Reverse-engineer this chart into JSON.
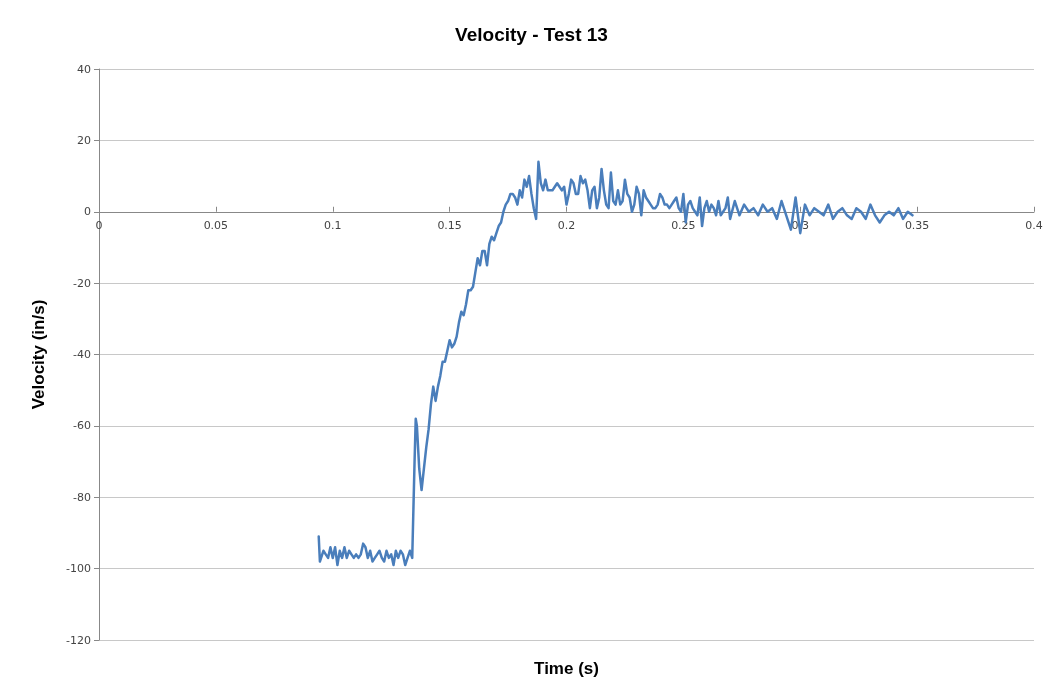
{
  "chart_data": {
    "type": "line",
    "title": "Velocity - Test 13",
    "xlabel": "Time (s)",
    "ylabel": "Velocity (in/s)",
    "xlim": [
      0,
      0.4
    ],
    "xticks": [
      0,
      0.05,
      0.1,
      0.15,
      0.2,
      0.25,
      0.3,
      0.35,
      0.4
    ],
    "ylim": [
      -120,
      40
    ],
    "yticks": [
      -120,
      -100,
      -80,
      -60,
      -40,
      -20,
      0,
      20,
      40
    ],
    "grid": "y",
    "marker": "none",
    "line_style": "solid",
    "series": [
      {
        "color": "#4a7ebb",
        "x": [
          0.094,
          0.0945,
          0.096,
          0.097,
          0.098,
          0.099,
          0.1,
          0.101,
          0.102,
          0.103,
          0.104,
          0.105,
          0.106,
          0.107,
          0.108,
          0.109,
          0.11,
          0.111,
          0.112,
          0.113,
          0.114,
          0.115,
          0.116,
          0.117,
          0.118,
          0.119,
          0.12,
          0.121,
          0.122,
          0.123,
          0.124,
          0.125,
          0.126,
          0.127,
          0.128,
          0.129,
          0.13,
          0.131,
          0.132,
          0.133,
          0.134,
          0.135,
          0.1355,
          0.136,
          0.137,
          0.138,
          0.139,
          0.14,
          0.141,
          0.142,
          0.143,
          0.144,
          0.145,
          0.146,
          0.147,
          0.148,
          0.149,
          0.15,
          0.151,
          0.152,
          0.153,
          0.154,
          0.155,
          0.156,
          0.157,
          0.158,
          0.159,
          0.16,
          0.161,
          0.162,
          0.163,
          0.164,
          0.165,
          0.166,
          0.167,
          0.168,
          0.169,
          0.17,
          0.171,
          0.172,
          0.173,
          0.174,
          0.175,
          0.176,
          0.177,
          0.178,
          0.179,
          0.18,
          0.181,
          0.182,
          0.183,
          0.184,
          0.185,
          0.186,
          0.187,
          0.188,
          0.189,
          0.19,
          0.191,
          0.192,
          0.193,
          0.194,
          0.195,
          0.196,
          0.197,
          0.198,
          0.199,
          0.2,
          0.201,
          0.202,
          0.203,
          0.204,
          0.205,
          0.206,
          0.207,
          0.208,
          0.209,
          0.21,
          0.211,
          0.212,
          0.213,
          0.214,
          0.215,
          0.216,
          0.217,
          0.218,
          0.219,
          0.22,
          0.221,
          0.222,
          0.223,
          0.224,
          0.225,
          0.226,
          0.227,
          0.228,
          0.229,
          0.23,
          0.231,
          0.232,
          0.233,
          0.234,
          0.235,
          0.236,
          0.237,
          0.238,
          0.239,
          0.24,
          0.241,
          0.242,
          0.243,
          0.244,
          0.245,
          0.246,
          0.247,
          0.248,
          0.249,
          0.25,
          0.251,
          0.252,
          0.253,
          0.254,
          0.255,
          0.256,
          0.257,
          0.258,
          0.259,
          0.26,
          0.261,
          0.262,
          0.263,
          0.264,
          0.265,
          0.266,
          0.267,
          0.268,
          0.269,
          0.27,
          0.272,
          0.274,
          0.276,
          0.278,
          0.28,
          0.282,
          0.284,
          0.286,
          0.288,
          0.29,
          0.292,
          0.294,
          0.296,
          0.298,
          0.3,
          0.302,
          0.304,
          0.306,
          0.308,
          0.31,
          0.312,
          0.314,
          0.316,
          0.318,
          0.32,
          0.322,
          0.324,
          0.326,
          0.328,
          0.33,
          0.332,
          0.334,
          0.336,
          0.338,
          0.34,
          0.342,
          0.344,
          0.346,
          0.348
        ],
        "values": [
          -91,
          -98,
          -95,
          -96,
          -97,
          -94,
          -97,
          -94,
          -99,
          -95,
          -97,
          -94,
          -97,
          -95,
          -96,
          -97,
          -96,
          -97,
          -96,
          -93,
          -94,
          -97,
          -95,
          -98,
          -97,
          -96,
          -95,
          -97,
          -98,
          -95,
          -97,
          -96,
          -99,
          -95,
          -97,
          -95,
          -96,
          -99,
          -97,
          -95,
          -97,
          -70,
          -58,
          -60,
          -72,
          -78,
          -72,
          -66,
          -61,
          -54,
          -49,
          -53,
          -49,
          -46,
          -42,
          -42,
          -39,
          -36,
          -38,
          -37,
          -35,
          -31,
          -28,
          -29,
          -26,
          -22,
          -22,
          -21,
          -17,
          -13,
          -15,
          -11,
          -11,
          -15,
          -9,
          -7,
          -8,
          -6,
          -4,
          -3,
          0,
          2,
          3,
          5,
          5,
          4,
          2,
          6,
          4,
          9,
          7,
          10,
          5,
          1,
          -2,
          14,
          8,
          6,
          9,
          6,
          6,
          6,
          7,
          8,
          7,
          6,
          7,
          2,
          5,
          9,
          8,
          5,
          5,
          10,
          8,
          9,
          6,
          1,
          6,
          7,
          1,
          4,
          12,
          6,
          2,
          1,
          11,
          3,
          2,
          6,
          2,
          3,
          9,
          5,
          4,
          0,
          2,
          7,
          5,
          -1,
          6,
          4,
          3,
          2,
          1,
          1,
          2,
          5,
          4,
          2,
          2,
          1,
          2,
          3,
          4,
          1,
          0,
          5,
          -3,
          2,
          3,
          1,
          0,
          -1,
          4,
          -4,
          1,
          3,
          0,
          2,
          1,
          -1,
          3,
          -1,
          0,
          1,
          4,
          -2,
          3,
          -1,
          2,
          0,
          1,
          -1,
          2,
          0,
          1,
          -2,
          3,
          -1,
          -5,
          4,
          -6,
          2,
          -1,
          1,
          0,
          -1,
          2,
          -2,
          0,
          1,
          -1,
          -2,
          1,
          0,
          -2,
          2,
          -1,
          -3,
          -1,
          0,
          -1,
          1,
          -2,
          0,
          -1
        ]
      }
    ]
  }
}
